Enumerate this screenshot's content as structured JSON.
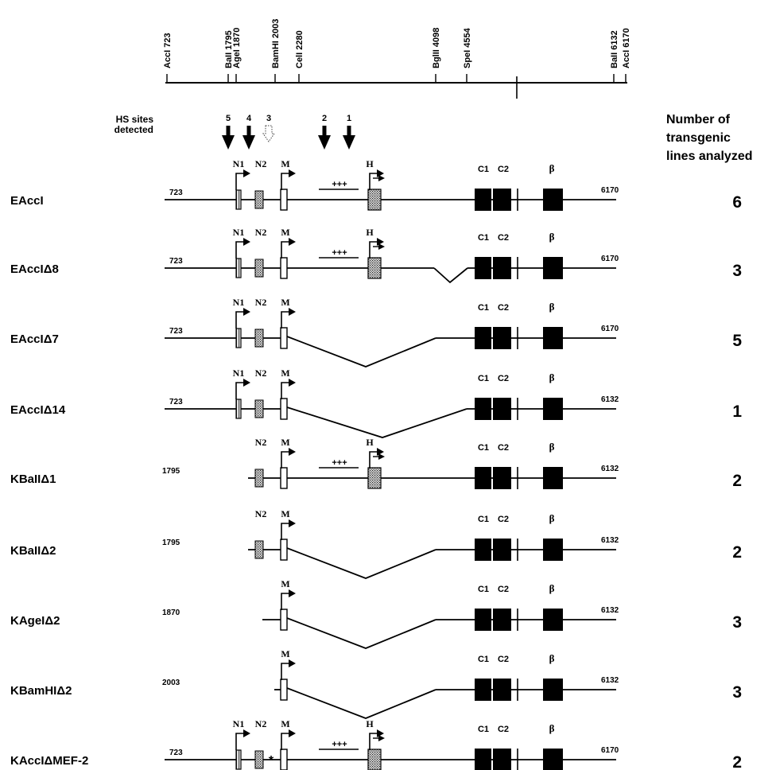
{
  "restriction_map": {
    "sites": [
      {
        "label": "AccI 723",
        "pos": 723
      },
      {
        "label": "BaII 1795",
        "pos": 1795
      },
      {
        "label": "AgeI 1870",
        "pos": 1870
      },
      {
        "label": "BamHI 2003",
        "pos": 2003
      },
      {
        "label": "CelI 2280",
        "pos": 2280
      },
      {
        "label": "BglII 4098",
        "pos": 4098
      },
      {
        "label": "SpeI 4554",
        "pos": 4554
      },
      {
        "label": "BaII 6132",
        "pos": 6132
      },
      {
        "label": "AccI 6170",
        "pos": 6170
      }
    ]
  },
  "hs_sites": {
    "label": "HS sites\ndetected",
    "arrows": [
      {
        "label": "5",
        "pos": 1530,
        "style": "solid"
      },
      {
        "label": "4",
        "pos": 1760,
        "style": "solid"
      },
      {
        "label": "3",
        "pos": 2000,
        "style": "stippled"
      },
      {
        "label": "2",
        "pos": 2580,
        "style": "solid"
      },
      {
        "label": "1",
        "pos": 2830,
        "style": "solid"
      }
    ]
  },
  "count_header": "Number of\ntransgenic\nlines analyzed",
  "element_labels": {
    "N1": "N1",
    "N2": "N2",
    "M": "M",
    "H": "H",
    "C1": "C1",
    "C2": "C2",
    "beta": "β",
    "plus": "+++"
  },
  "constructs": [
    {
      "name": "EAccI",
      "start": "723",
      "end": "6170",
      "count": "6",
      "elements": [
        "N1",
        "N2",
        "M",
        "+++",
        "H"
      ],
      "deletion": null
    },
    {
      "name": "EAccIΔ8",
      "start": "723",
      "end": "6170",
      "count": "3",
      "elements": [
        "N1",
        "N2",
        "M",
        "+++",
        "H"
      ],
      "deletion": "small"
    },
    {
      "name": "EAccIΔ7",
      "start": "723",
      "end": "6170",
      "count": "5",
      "elements": [
        "N1",
        "N2",
        "M"
      ],
      "deletion": "M-SpeI"
    },
    {
      "name": "EAccIΔ14",
      "start": "723",
      "end": "6132",
      "count": "1",
      "elements": [
        "N1",
        "N2",
        "M"
      ],
      "deletion": "M-BglII"
    },
    {
      "name": "KBaIIΔ1",
      "start": "1795",
      "end": "6132",
      "count": "2",
      "elements": [
        "N2",
        "M",
        "+++",
        "H"
      ],
      "deletion": null
    },
    {
      "name": "KBaIIΔ2",
      "start": "1795",
      "end": "6132",
      "count": "2",
      "elements": [
        "N2",
        "M"
      ],
      "deletion": "M-SpeI"
    },
    {
      "name": "KAgeIΔ2",
      "start": "1870",
      "end": "6132",
      "count": "3",
      "elements": [
        "M"
      ],
      "deletion": "M-SpeI"
    },
    {
      "name": "KBamHIΔ2",
      "start": "2003",
      "end": "6132",
      "count": "3",
      "elements": [
        "M"
      ],
      "deletion": "M-SpeI"
    },
    {
      "name": "KAccIΔMEF-2",
      "start": "723",
      "end": "6170",
      "count": "2",
      "elements": [
        "N1",
        "N2",
        "*",
        "M",
        "+++",
        "H"
      ],
      "deletion": null
    }
  ]
}
